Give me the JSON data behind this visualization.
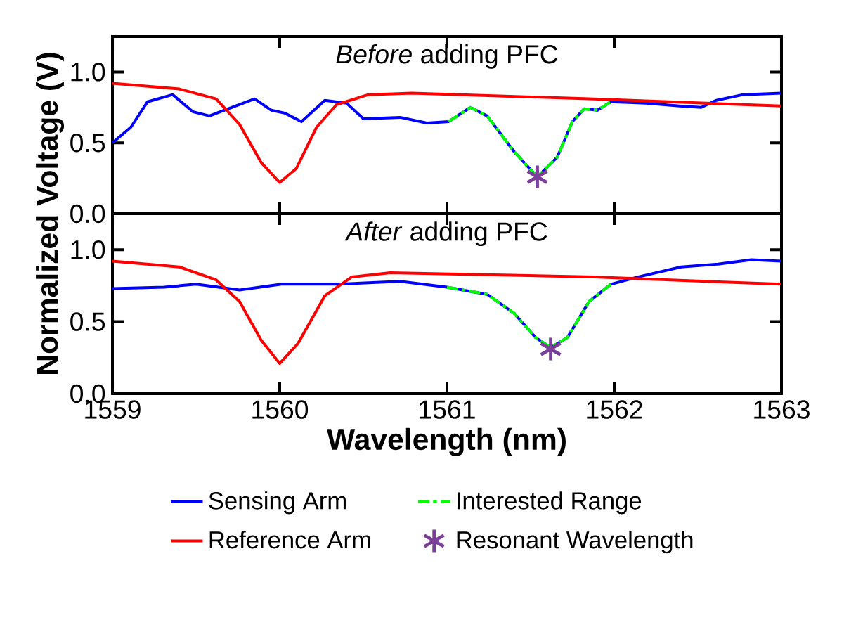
{
  "chart_data": [
    {
      "type": "line",
      "title": "*Before* adding PFC",
      "ylabel": "Normalized Voltage (V)",
      "xlim": [
        1559,
        1563
      ],
      "ylim": [
        0,
        1.25
      ],
      "xticks": [
        1559,
        1560,
        1561,
        1562,
        1563
      ],
      "yticks": [
        {
          "value": 0,
          "label": "0.0"
        },
        {
          "value": 0.5,
          "label": "0.5"
        },
        {
          "value": 1,
          "label": "1.0"
        }
      ],
      "tick_labels": "y",
      "series": [
        {
          "color": "#0000ff",
          "line_style": "solid",
          "x": [
            1559,
            1559.11,
            1559.21,
            1559.36,
            1559.48,
            1559.58,
            1559.69,
            1559.85,
            1559.95,
            1560.03,
            1560.13,
            1560.27,
            1560.4,
            1560.5,
            1560.72,
            1560.88,
            1561.01,
            1561.14,
            1561.24,
            1561.4,
            1561.54,
            1561.66,
            1561.75,
            1561.82,
            1561.9,
            1561.98,
            1562.19,
            1562.39,
            1562.52,
            1562.61,
            1562.77,
            1563
          ],
          "values": [
            0.5,
            0.61,
            0.79,
            0.84,
            0.72,
            0.69,
            0.74,
            0.81,
            0.73,
            0.71,
            0.65,
            0.8,
            0.78,
            0.67,
            0.68,
            0.64,
            0.65,
            0.75,
            0.69,
            0.44,
            0.26,
            0.4,
            0.65,
            0.74,
            0.73,
            0.79,
            0.78,
            0.76,
            0.75,
            0.8,
            0.84,
            0.85
          ]
        },
        {
          "color": "#00ff00",
          "line_style": "dashed",
          "x": [
            1561.01,
            1561.14,
            1561.24,
            1561.4,
            1561.54,
            1561.66,
            1561.75,
            1561.82,
            1561.9,
            1561.98
          ],
          "values": [
            0.65,
            0.75,
            0.69,
            0.44,
            0.26,
            0.4,
            0.65,
            0.74,
            0.73,
            0.79
          ]
        },
        {
          "color": "#ff0000",
          "line_style": "solid",
          "x": [
            1559,
            1559.4,
            1559.62,
            1559.76,
            1559.89,
            1560,
            1560.1,
            1560.22,
            1560.34,
            1560.53,
            1560.79,
            1561.88,
            1563
          ],
          "values": [
            0.92,
            0.88,
            0.81,
            0.63,
            0.36,
            0.22,
            0.32,
            0.61,
            0.77,
            0.84,
            0.85,
            0.81,
            0.76
          ]
        },
        {
          "type": "scatter",
          "marker": "cross",
          "color": "#7b3f99",
          "x": [
            1561.54
          ],
          "values": [
            0.26
          ]
        }
      ]
    },
    {
      "type": "line",
      "title": "*After* adding PFC",
      "xlabel": "Wavelength (nm)",
      "xlim": [
        1559,
        1563
      ],
      "ylim": [
        0,
        1.25
      ],
      "xticks": [
        1559,
        1560,
        1561,
        1562,
        1563
      ],
      "yticks": [
        {
          "value": 0,
          "label": "0.0"
        },
        {
          "value": 0.5,
          "label": "0.5"
        },
        {
          "value": 1,
          "label": "1.0"
        }
      ],
      "legend": "bottom",
      "series": [
        {
          "name": "Sensing Arm",
          "color": "#0000ff",
          "line_style": "solid",
          "x": [
            1559,
            1559.31,
            1559.5,
            1559.76,
            1560.01,
            1560.34,
            1560.72,
            1561,
            1561.24,
            1561.4,
            1561.53,
            1561.62,
            1561.72,
            1561.85,
            1561.98,
            1562.14,
            1562.4,
            1562.62,
            1562.82,
            1563
          ],
          "values": [
            0.73,
            0.74,
            0.76,
            0.72,
            0.76,
            0.76,
            0.78,
            0.74,
            0.69,
            0.56,
            0.39,
            0.32,
            0.39,
            0.64,
            0.76,
            0.81,
            0.88,
            0.9,
            0.93,
            0.92
          ]
        },
        {
          "name": "Interested Range",
          "color": "#00ff00",
          "line_style": "dashed",
          "x": [
            1561,
            1561.24,
            1561.4,
            1561.53,
            1561.62,
            1561.72,
            1561.85,
            1561.98
          ],
          "values": [
            0.74,
            0.69,
            0.56,
            0.39,
            0.32,
            0.39,
            0.64,
            0.76
          ]
        },
        {
          "name": "Reference Arm",
          "color": "#ff0000",
          "line_style": "solid",
          "x": [
            1559,
            1559.4,
            1559.62,
            1559.76,
            1559.89,
            1560,
            1560.11,
            1560.27,
            1560.43,
            1560.66,
            1561.88,
            1563
          ],
          "values": [
            0.92,
            0.88,
            0.79,
            0.64,
            0.37,
            0.21,
            0.35,
            0.68,
            0.81,
            0.84,
            0.81,
            0.76
          ]
        },
        {
          "name": "Resonant Wavelength",
          "type": "scatter",
          "marker": "cross",
          "color": "#7b3f99",
          "x": [
            1561.62
          ],
          "values": [
            0.31
          ]
        }
      ]
    }
  ]
}
